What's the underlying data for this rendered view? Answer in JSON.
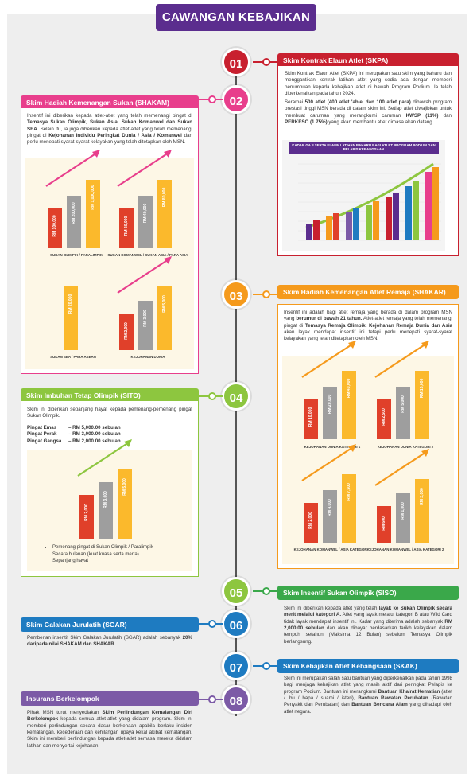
{
  "header": {
    "title": "CAWANGAN KEBAJIKAN"
  },
  "colors": {
    "purple": "#5b2d8e",
    "red": "#c8202f",
    "pink": "#e83e8c",
    "orange": "#f59a1c",
    "green": "#8dc63f",
    "blue": "#1e7bc1",
    "violet": "#7c5aa6",
    "bar_red": "#e0402a",
    "bar_gray": "#9e9e9e",
    "bar_yellow": "#fbb92c"
  },
  "sections": {
    "s01": {
      "num": "01",
      "title": "Skim Kontrak Elaun Atlet (SKPA)",
      "p1": "Skim Kontrak Elaun Atlet (SKPA) ini merupakan satu skim yang baharu dan menggantikan kontrak latihan atlet yang sedia ada dengan memberi penumpuan kepada kebajikan atlet di bawah Program Podium. Ia telah diperkenalkan pada tahun 2024.",
      "p2a": "Seramai ",
      "p2b": "500 atlet (400 atlet 'able' dan 100 atlet para)",
      "p2c": " dibawah program prestasi tinggi MSN berada di dalam skim ini. Setiap atlet diwajibkan untuk membuat caruman yang merangkumi caruman ",
      "p2d": "KWSP (11%)",
      "p2e": " dan ",
      "p2f": "PERKESO (1.75%)",
      "p2g": " yang akan membantu atlet dimasa akan datang.",
      "chart_title": "KADAR GAJI SERTA ELAUN LATIHAN BAHARU BAGI ATLET PROGRAM PODIUM DAN PELAPIS KEBANGSAAN"
    },
    "s02": {
      "num": "02",
      "title": "Skim Hadiah Kemenangan Sukan (SHAKAM)",
      "p1a": "Insentif ini diberikan kepada atlet-atlet yang telah memenangi pingat di ",
      "p1b": "Temasya Sukan Olimpik, Sukan Asia, Sukan Komanwel dan Sukan SEA.",
      "p1c": " Selain itu, ia juga diberikan kepada atlet-atlet yang telah memenangi pingat di ",
      "p1d": "Kejohanan Individu Peringkat Dunia / Asia / Komanwel",
      "p1e": " dan perlu menepati syarat-syarat kelayakan yang telah ditetapkan oleh MSN.",
      "charts": [
        {
          "label": "SUKAN OLIMPIK / PARALIMPIK",
          "values": [
            "RM 100,000",
            "RM 200,000",
            "RM 1,000,000"
          ]
        },
        {
          "label": "SUKAN KOMANWEL / SUKAN ASIA / PARA ASIA",
          "values": [
            "RM 20,000",
            "RM 40,000",
            "RM 80,000"
          ]
        },
        {
          "label": "SUKAN SEA / PARA ASEAN",
          "values": [
            "RM 20,000"
          ]
        },
        {
          "label": "KEJOHANAN DUNIA",
          "values": [
            "RM 2,000",
            "RM 3,000",
            "RM 5,000"
          ]
        }
      ]
    },
    "s03": {
      "num": "03",
      "title": "Skim Hadiah Kemenangan Atlet Remaja (SHAKAR)",
      "p1a": "Insentif ini adalah bagi atlet remaja yang berada di dalam program MSN yang ",
      "p1b": "berumur di bawah 21 tahun.",
      "p1c": " Atlet-atlet remaja yang telah memenangi pingat di ",
      "p1d": "Temasya Remaja Olimpik, Kejohanan Remaja Dunia dan Asia",
      "p1e": " akan layak mendapat insentif ini tetapi perlu menepati syarat-syarat kelayakan yang telah ditetapkan oleh MSN.",
      "charts": [
        {
          "label": "KEJOHANAN DUNIA KATEGORI 1",
          "values": [
            "RM 10,000",
            "RM 20,000",
            "RM 40,000"
          ]
        },
        {
          "label": "KEJOHANAN DUNIA KATEGORI 2",
          "values": [
            "RM 2,500",
            "RM 5,000",
            "RM 10,000"
          ]
        },
        {
          "label": "KEJOHANAN KOMANWEL / ASIA KATEGORI 1",
          "values": [
            "RM 2,000",
            "RM 4,000",
            "RM 7,500"
          ]
        },
        {
          "label": "KEJOHANAN KOMANWEL / ASIA KATEGORI 2",
          "values": [
            "RM 600",
            "RM 1,000",
            "RM 2,000"
          ]
        }
      ]
    },
    "s04": {
      "num": "04",
      "title": "Skim Imbuhan Tetap Olimpik (SITO)",
      "p1": "Skim ini diberikan sepanjang hayat kepada pemenang-pemenang pingat Sukan Olimpik.",
      "medals": [
        {
          "name": "Pingat Emas",
          "value": "– RM 5,000.00 sebulan"
        },
        {
          "name": "Pingat Perak",
          "value": "– RM 3,000.00 sebulan"
        },
        {
          "name": "Pingat Gangsa",
          "value": "– RM 2,000.00 sebulan"
        }
      ],
      "chart_values": [
        "RM 2,000",
        "RM 3,000",
        "RM 5,000"
      ],
      "bullets": [
        "Pemenang pingat di Sukan Olimpik / Paralimpik",
        "Secara bulanan (kuat kuasa serta merta)",
        "Sepanjang hayat"
      ]
    },
    "s05": {
      "num": "05",
      "title": "Skim Insentif Sukan Olimpik (SISO)",
      "p1a": "Skim ini diberikan kepada atlet yang telah ",
      "p1b": "layak ke Sukan Olimpik secara merit melalui kategori A.",
      "p1c": " Atlet yang layak melalui kategori B atau Wild Card tidak layak mendapat insentif ini. Kadar yang diterima adalah sebanyak ",
      "p1d": "RM 2,000.00 sebulan",
      "p1e": " dan akan dibayar berdasarkan tarikh kelayakan dalam tempoh setahun (Maksima 12 Bulan) sebelum Temasya Olimpik berlangsung."
    },
    "s06": {
      "num": "06",
      "title": "Skim Galakan Jurulatih (SGAR)",
      "p1a": "Pemberian insentif Skim Galakan Jurulatih (SGAR) adalah sebanyak ",
      "p1b": "20% daripada nilai SHAKAM dan SHAKAR."
    },
    "s07": {
      "num": "07",
      "title": "Skim Kebajikan Atlet Kebangsaan (SKAK)",
      "p1a": "Skim ini merupakan salah satu bantuan yang diperkenalkan pada tahun 1998 bagi menjaga kebajikan atlet yang masih aktif dari peringkat Pelapis ke program Podium. Bantuan ini merangkumi ",
      "p1b": "Bantuan Khairat Kematian",
      "p1c": " (atlet / ibu / bapa / suami / isteri), ",
      "p1d": "Bantuan Rawatan Perubatan",
      "p1e": " (Rawatan Penyakit dan Perubatan) dan ",
      "p1f": "Bantuan Bencana Alam",
      "p1g": " yang dihadapi oleh atlet negara."
    },
    "s08": {
      "num": "08",
      "title": "Insurans Berkelompok",
      "p1a": "Pihak MSN turut menyediakan ",
      "p1b": "Skim Perlindungan Kemalangan Diri Berkelompok",
      "p1c": " kepada semua atlet-atlet yang didalam program. Skim ini memberi perlindungan secara dasar berkenaan apabila berlaku insiden kemalangan, kecederaan dan kehilangan upaya kekal akibat kemalangan. Skim ini memberi perlindungan kepada atlet-atlet semasa mereka didalam latihan dan menyertai kejohanan."
    }
  }
}
